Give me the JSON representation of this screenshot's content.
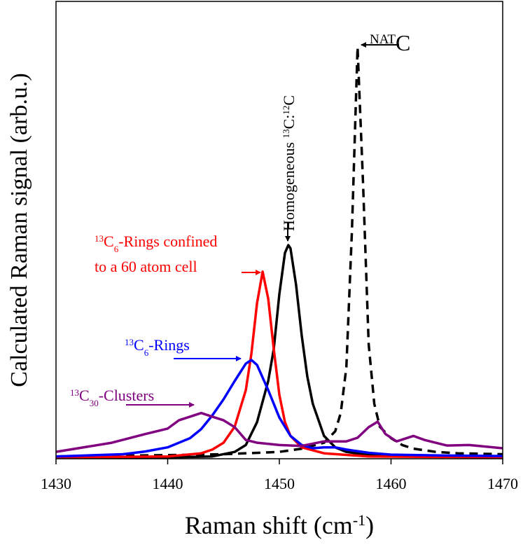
{
  "chart_data": {
    "type": "line",
    "xlabel": [
      {
        "t": "Raman shift (cm",
        "pos": "base"
      },
      {
        "t": "-1",
        "pos": "sup"
      },
      {
        "t": ")",
        "pos": "base"
      }
    ],
    "ylabel": "Calculated Raman signal (arb.u.)",
    "xlim": [
      1430,
      1470
    ],
    "xticks": [
      1430,
      1440,
      1450,
      1460,
      1470
    ],
    "ylim": [
      0,
      100
    ],
    "series": [
      {
        "color": "#000000",
        "dash": true,
        "x": [
          1430,
          1440,
          1445,
          1450,
          1452,
          1454,
          1455,
          1455.5,
          1456,
          1456.5,
          1457,
          1457.5,
          1458,
          1458.5,
          1459,
          1460,
          1461,
          1462,
          1464,
          1466,
          1470
        ],
        "values": [
          0.5,
          0.8,
          1.0,
          1.5,
          2.2,
          3.5,
          6,
          10,
          20,
          50,
          90,
          60,
          25,
          12,
          7,
          4.5,
          3,
          2.2,
          1.5,
          1.2,
          1
        ]
      },
      {
        "color": "#000000",
        "dash": false,
        "x": [
          1430,
          1440,
          1444,
          1446,
          1447,
          1448,
          1449,
          1449.5,
          1450,
          1450.5,
          1450.8,
          1451,
          1451.5,
          1452,
          1452.5,
          1453,
          1454,
          1455,
          1456,
          1458,
          1462,
          1470
        ],
        "values": [
          0.3,
          0.3,
          0.5,
          1.5,
          3,
          8,
          17,
          24,
          36,
          45,
          46.7,
          46,
          38,
          27,
          18,
          12,
          5,
          2.5,
          1.5,
          0.8,
          0.5,
          0.3
        ]
      },
      {
        "color": "#ff0000",
        "dash": false,
        "x": [
          1430,
          1440,
          1443,
          1444,
          1445,
          1446,
          1447,
          1447.5,
          1448,
          1448.5,
          1449,
          1449.5,
          1450,
          1450.5,
          1451,
          1452,
          1454,
          1458,
          1470
        ],
        "values": [
          0.3,
          0.5,
          1.2,
          2,
          3.5,
          7,
          15,
          23,
          34,
          40.9,
          35,
          24,
          14,
          8,
          5,
          2.5,
          1.2,
          0.5,
          0.3
        ]
      },
      {
        "color": "#0000ff",
        "dash": false,
        "x": [
          1430,
          1436,
          1438,
          1440,
          1442,
          1443,
          1444,
          1445,
          1446,
          1447,
          1447.5,
          1448,
          1449,
          1450,
          1451,
          1452,
          1453,
          1454,
          1455,
          1456,
          1458,
          1460,
          1465,
          1470
        ],
        "values": [
          0.5,
          1,
          1.6,
          2.5,
          4.5,
          6.5,
          9.5,
          13,
          17,
          20.8,
          21.6,
          20.5,
          15,
          9,
          5,
          3,
          2.3,
          2.5,
          2.5,
          2,
          1.3,
          0.9,
          0.7,
          0.6
        ]
      },
      {
        "color": "#800080",
        "dash": false,
        "x": [
          1430,
          1435,
          1438,
          1440,
          1441,
          1442,
          1443,
          1444,
          1445,
          1446,
          1447,
          1448,
          1450,
          1452,
          1454,
          1456,
          1457,
          1458,
          1458.8,
          1459.5,
          1460.5,
          1462,
          1463,
          1465,
          1467,
          1470
        ],
        "values": [
          1.5,
          3.5,
          5.4,
          6.6,
          8.4,
          9.2,
          10,
          9.2,
          8.4,
          6.9,
          4.1,
          3.5,
          3,
          2.8,
          3.8,
          3.8,
          4.6,
          6.9,
          8.1,
          5.4,
          3.8,
          5,
          4.1,
          2.9,
          3,
          2.3
        ]
      }
    ],
    "annotations": [
      {
        "color": "#800080",
        "lines": [
          [
            {
              "t": "13",
              "pos": "sup"
            },
            {
              "t": "C",
              "pos": "base"
            },
            {
              "t": "30",
              "pos": "sub"
            },
            {
              "t": "-Clusters",
              "pos": "base"
            }
          ]
        ]
      },
      {
        "color": "#0000ff",
        "lines": [
          [
            {
              "t": "13",
              "pos": "sup"
            },
            {
              "t": "C",
              "pos": "base"
            },
            {
              "t": "6",
              "pos": "sub"
            },
            {
              "t": "-Rings",
              "pos": "base"
            }
          ]
        ]
      },
      {
        "color": "#ff0000",
        "lines": [
          [
            {
              "t": "13",
              "pos": "sup"
            },
            {
              "t": "C",
              "pos": "base"
            },
            {
              "t": "6",
              "pos": "sub"
            },
            {
              "t": "-Rings confined",
              "pos": "base"
            }
          ],
          [
            {
              "t": "to a 60 atom cell",
              "pos": "base"
            }
          ]
        ]
      },
      {
        "color": "#000000",
        "lines": [
          [
            {
              "t": "Homogeneous ",
              "pos": "base"
            },
            {
              "t": "13",
              "pos": "sup"
            },
            {
              "t": "C:",
              "pos": "base"
            },
            {
              "t": "12",
              "pos": "sup"
            },
            {
              "t": "C",
              "pos": "base"
            }
          ]
        ]
      },
      {
        "color": "#000000",
        "lines": [
          [
            {
              "t": "NAT",
              "pos": "sup"
            },
            {
              "t": "C",
              "pos": "base"
            }
          ]
        ]
      }
    ]
  }
}
